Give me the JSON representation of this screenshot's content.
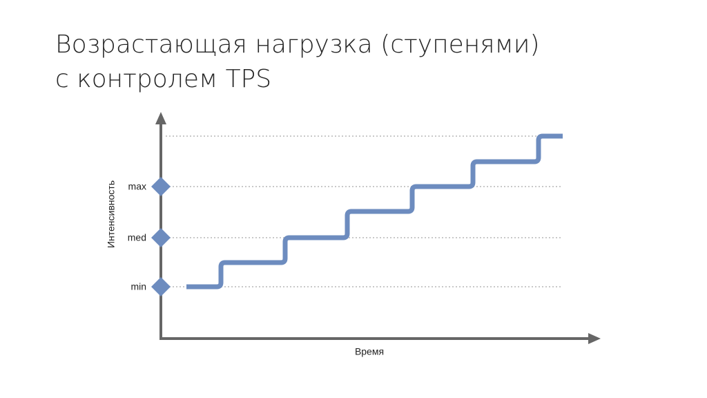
{
  "header": {
    "title": [
      "Возрастающая нагрузка (ступенями)",
      "с контролем TPS"
    ]
  },
  "diagram": {
    "y_axis_label": "Интенсивность",
    "x_axis_label": "Время",
    "levels": [
      "max",
      "med",
      "min"
    ]
  }
}
